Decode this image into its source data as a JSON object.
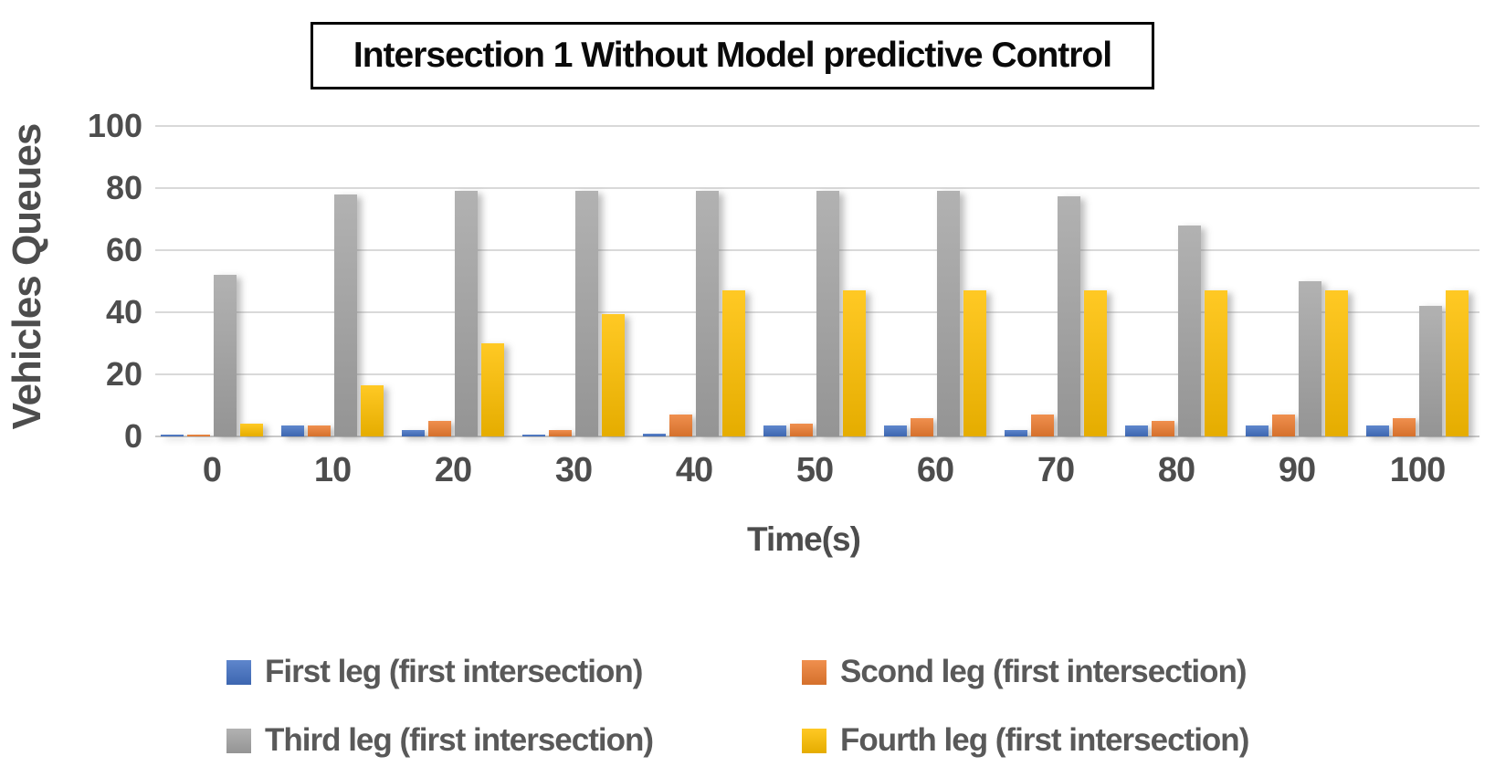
{
  "title": "Intersection 1 Without Model predictive Control",
  "colors": {
    "first_leg": "#4472C4",
    "second_leg": "#ED7D31",
    "third_leg": "#A5A5A5",
    "fourth_leg": "#FFC000",
    "gridline": "#D9D9D9",
    "axis_text": "#4D4D4D",
    "legend_text": "#595959",
    "title_text": "#000000"
  },
  "chart_data": {
    "type": "bar",
    "title": "Intersection 1 Without Model predictive Control",
    "xlabel": "Time(s)",
    "ylabel": "Vehicles Queues",
    "ylim": [
      0,
      100
    ],
    "y_ticks": [
      0,
      20,
      40,
      60,
      80,
      100
    ],
    "grid": true,
    "legend_position": "bottom",
    "categories": [
      0,
      10,
      20,
      30,
      40,
      50,
      60,
      70,
      80,
      90,
      100
    ],
    "series": [
      {
        "name": "First leg (first intersection)",
        "color": "#4472C4",
        "values": [
          0.5,
          3.5,
          2,
          0.5,
          1,
          3.5,
          3.5,
          2,
          3.5,
          3.5,
          3.5
        ]
      },
      {
        "name": "Scond leg (first intersection)",
        "color": "#ED7D31",
        "values": [
          0.5,
          3.5,
          5,
          2,
          7,
          4,
          6,
          7,
          5,
          7,
          6
        ]
      },
      {
        "name": "Third leg (first intersection)",
        "color": "#A5A5A5",
        "values": [
          52,
          78,
          79,
          79,
          79,
          79,
          79,
          77.5,
          68,
          50,
          42
        ]
      },
      {
        "name": "Fourth leg (first intersection)",
        "color": "#FFC000",
        "values": [
          4,
          16.5,
          30,
          39.5,
          47,
          47,
          47,
          47,
          47,
          47,
          47
        ]
      }
    ]
  }
}
